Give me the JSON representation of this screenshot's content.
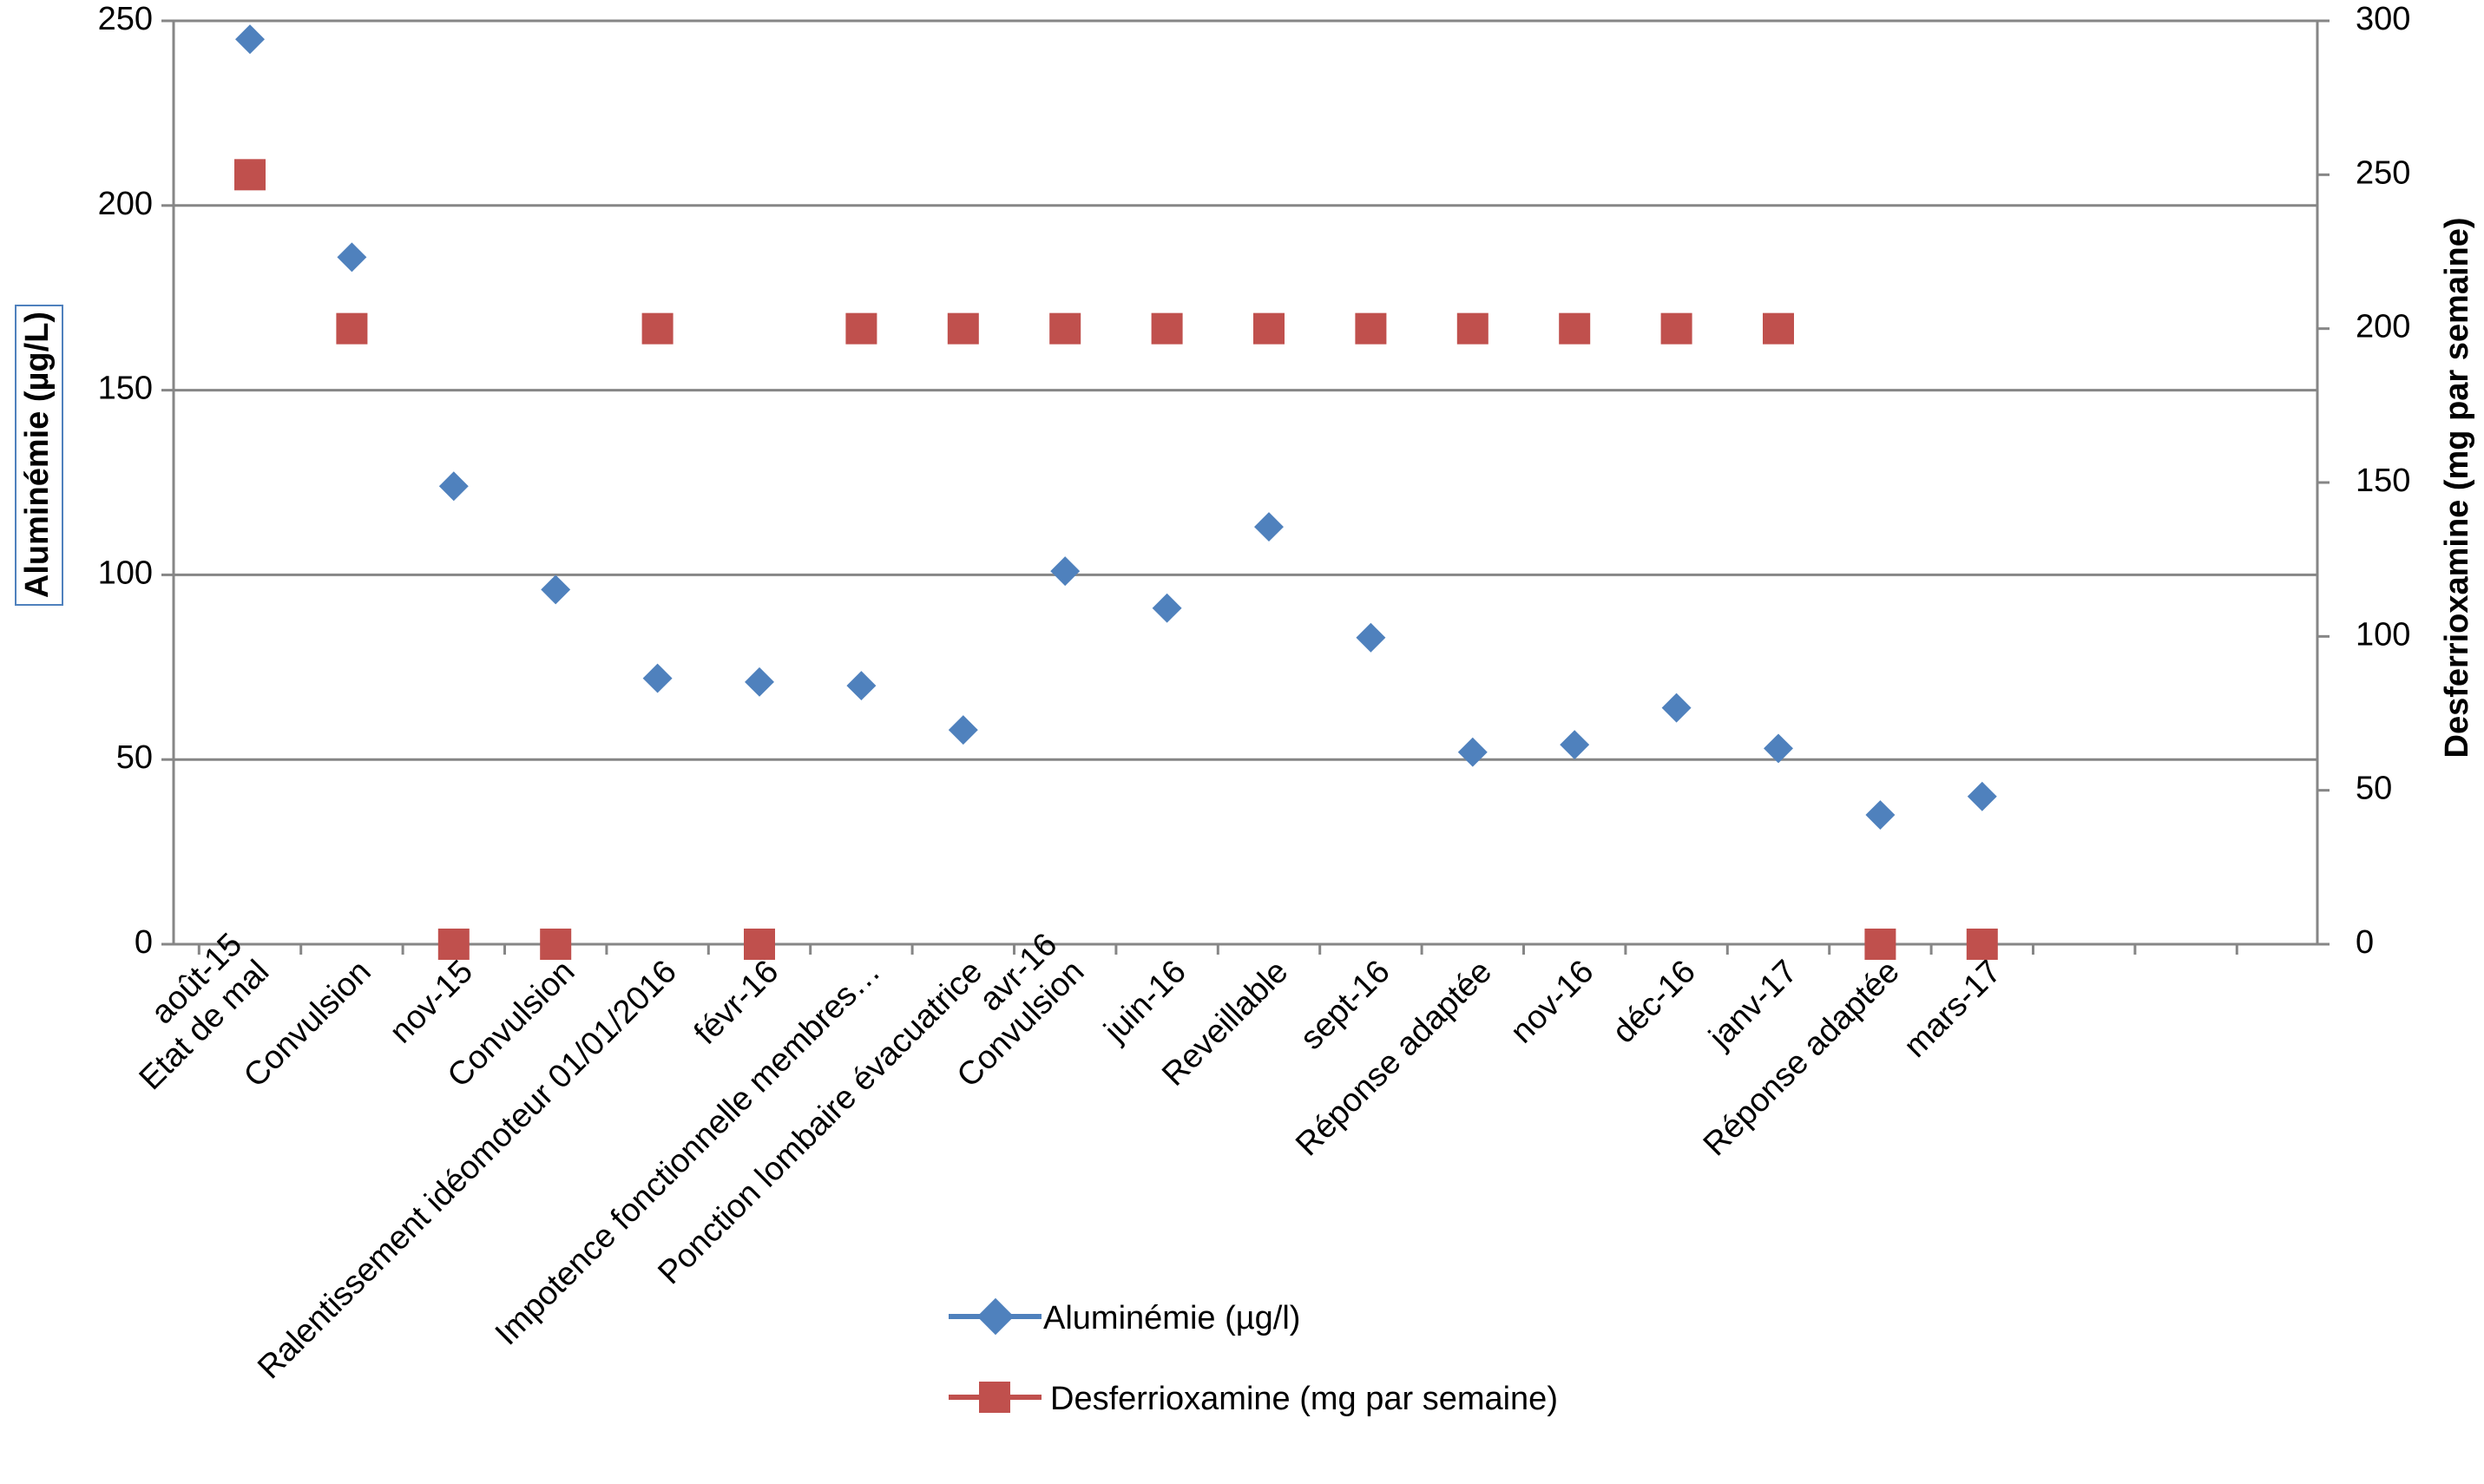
{
  "chart_data": {
    "type": "scatter",
    "categories": [
      "août-15\nEtat de mal",
      "Convulsion",
      "nov-15",
      "Convulsion",
      "Ralentissement idéomoteur 01/01/2016",
      "févr-16",
      "Impotence fonctionnelle membres…",
      "Ponction lombaire évacuatrice",
      "avr-16\nConvulsion",
      "juin-16",
      "Reveillable",
      "sept-16",
      "Réponse adaptée",
      "nov-16",
      "déc-16",
      "janv-17",
      "Réponse adaptée",
      "mars-17"
    ],
    "series": [
      {
        "name": "Aluminémie  (µg/l)",
        "axis": "left",
        "marker": "diamond",
        "color": "#4F81BD",
        "values": [
          245,
          186,
          124,
          96,
          72,
          71,
          70,
          58,
          101,
          91,
          113,
          83,
          52,
          54,
          64,
          53,
          35,
          40
        ]
      },
      {
        "name": "Desferrioxamine (mg par semaine)",
        "axis": "right",
        "marker": "square",
        "color": "#C0504D",
        "values": [
          250,
          200,
          0,
          0,
          200,
          0,
          200,
          200,
          200,
          200,
          200,
          200,
          200,
          200,
          200,
          200,
          0,
          0
        ]
      }
    ],
    "y_left": {
      "label": "Aluminémie (µg/L)",
      "ylim": [
        0,
        250
      ],
      "ticks": [
        0,
        50,
        100,
        150,
        200,
        250
      ]
    },
    "y_right": {
      "label": "Desferrioxamine (mg par semaine)",
      "ylim": [
        0,
        300
      ],
      "ticks": [
        0,
        50,
        100,
        150,
        200,
        250,
        300
      ]
    },
    "grid": true,
    "legend_position": "bottom-center"
  }
}
